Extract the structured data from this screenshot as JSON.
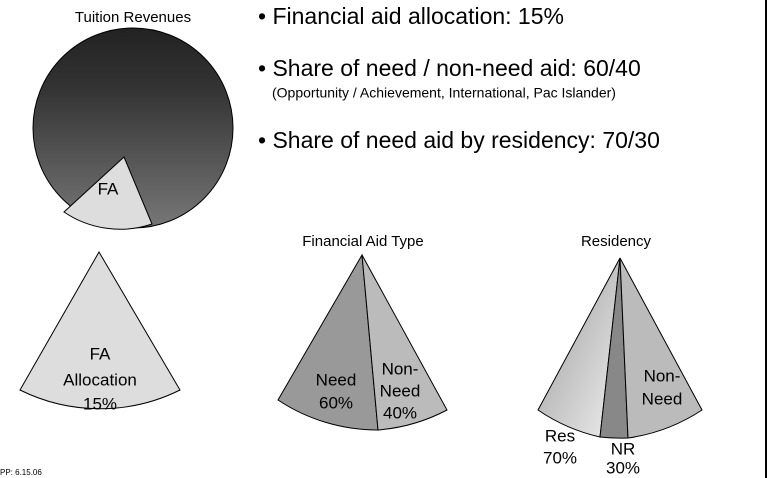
{
  "pie_title": "Tuition Revenues",
  "pie_slice_label": "FA",
  "bullets": [
    {
      "text": "Financial aid allocation: 15%"
    },
    {
      "text": "Share of need / non-need aid: 60/40",
      "note": "(Opportunity / Achievement, International, Pac Islander)"
    },
    {
      "text": "Share of need aid by residency: 70/30"
    }
  ],
  "allocation_wedge": {
    "lines": [
      "FA",
      "Allocation",
      "15%"
    ]
  },
  "aid_type": {
    "title": "Financial Aid Type",
    "left": [
      "Need",
      "60%"
    ],
    "right": [
      "Non-",
      "Need",
      "40%"
    ]
  },
  "residency": {
    "title": "Residency",
    "right": [
      "Non-",
      "Need"
    ],
    "left": [
      "Res",
      "70%"
    ],
    "middle": [
      "NR",
      "30%"
    ]
  },
  "footer": "PP: 6.15.06"
}
